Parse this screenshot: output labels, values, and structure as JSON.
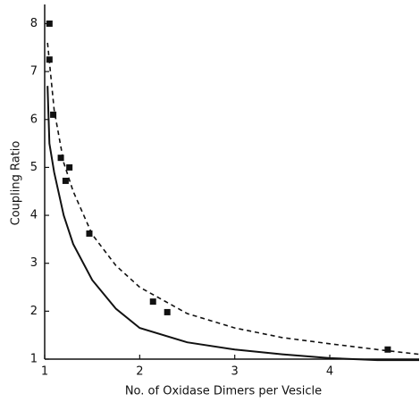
{
  "chart_data": {
    "type": "scatter",
    "x_label": "No. of Oxidase  Dimers per Vesicle",
    "y_label": "Coupling Ratio",
    "xlim": [
      1,
      4.94
    ],
    "xticks": [
      1,
      2,
      3,
      4
    ],
    "ylim": [
      1,
      8.4
    ],
    "yticks": [
      1,
      2,
      3,
      4,
      5,
      6,
      7,
      8
    ],
    "series": [
      {
        "type": "scatter",
        "color": "#111111",
        "x": [
          1.05,
          1.05,
          1.09,
          1.17,
          1.22,
          1.26,
          1.47,
          2.14,
          2.29,
          4.61
        ],
        "values": [
          8.0,
          7.25,
          6.1,
          5.2,
          4.72,
          5.0,
          3.62,
          2.2,
          1.98,
          1.2
        ]
      },
      {
        "type": "line",
        "dashed": true,
        "color": "#111111",
        "x": [
          1.03,
          1.1,
          1.2,
          1.3,
          1.5,
          1.75,
          2,
          2.5,
          3,
          3.5,
          4,
          4.5,
          4.94
        ],
        "values": [
          7.6,
          6.2,
          5.1,
          4.5,
          3.6,
          2.95,
          2.5,
          1.95,
          1.65,
          1.45,
          1.32,
          1.2,
          1.1
        ]
      },
      {
        "type": "line",
        "dashed": false,
        "color": "#111111",
        "x": [
          1.03,
          1.05,
          1.1,
          1.2,
          1.3,
          1.5,
          1.75,
          2,
          2.5,
          3,
          3.5,
          4,
          4.5,
          4.94
        ],
        "values": [
          6.7,
          5.5,
          4.9,
          4.0,
          3.4,
          2.65,
          2.05,
          1.65,
          1.35,
          1.2,
          1.1,
          1.02,
          0.98,
          0.98
        ]
      }
    ]
  }
}
